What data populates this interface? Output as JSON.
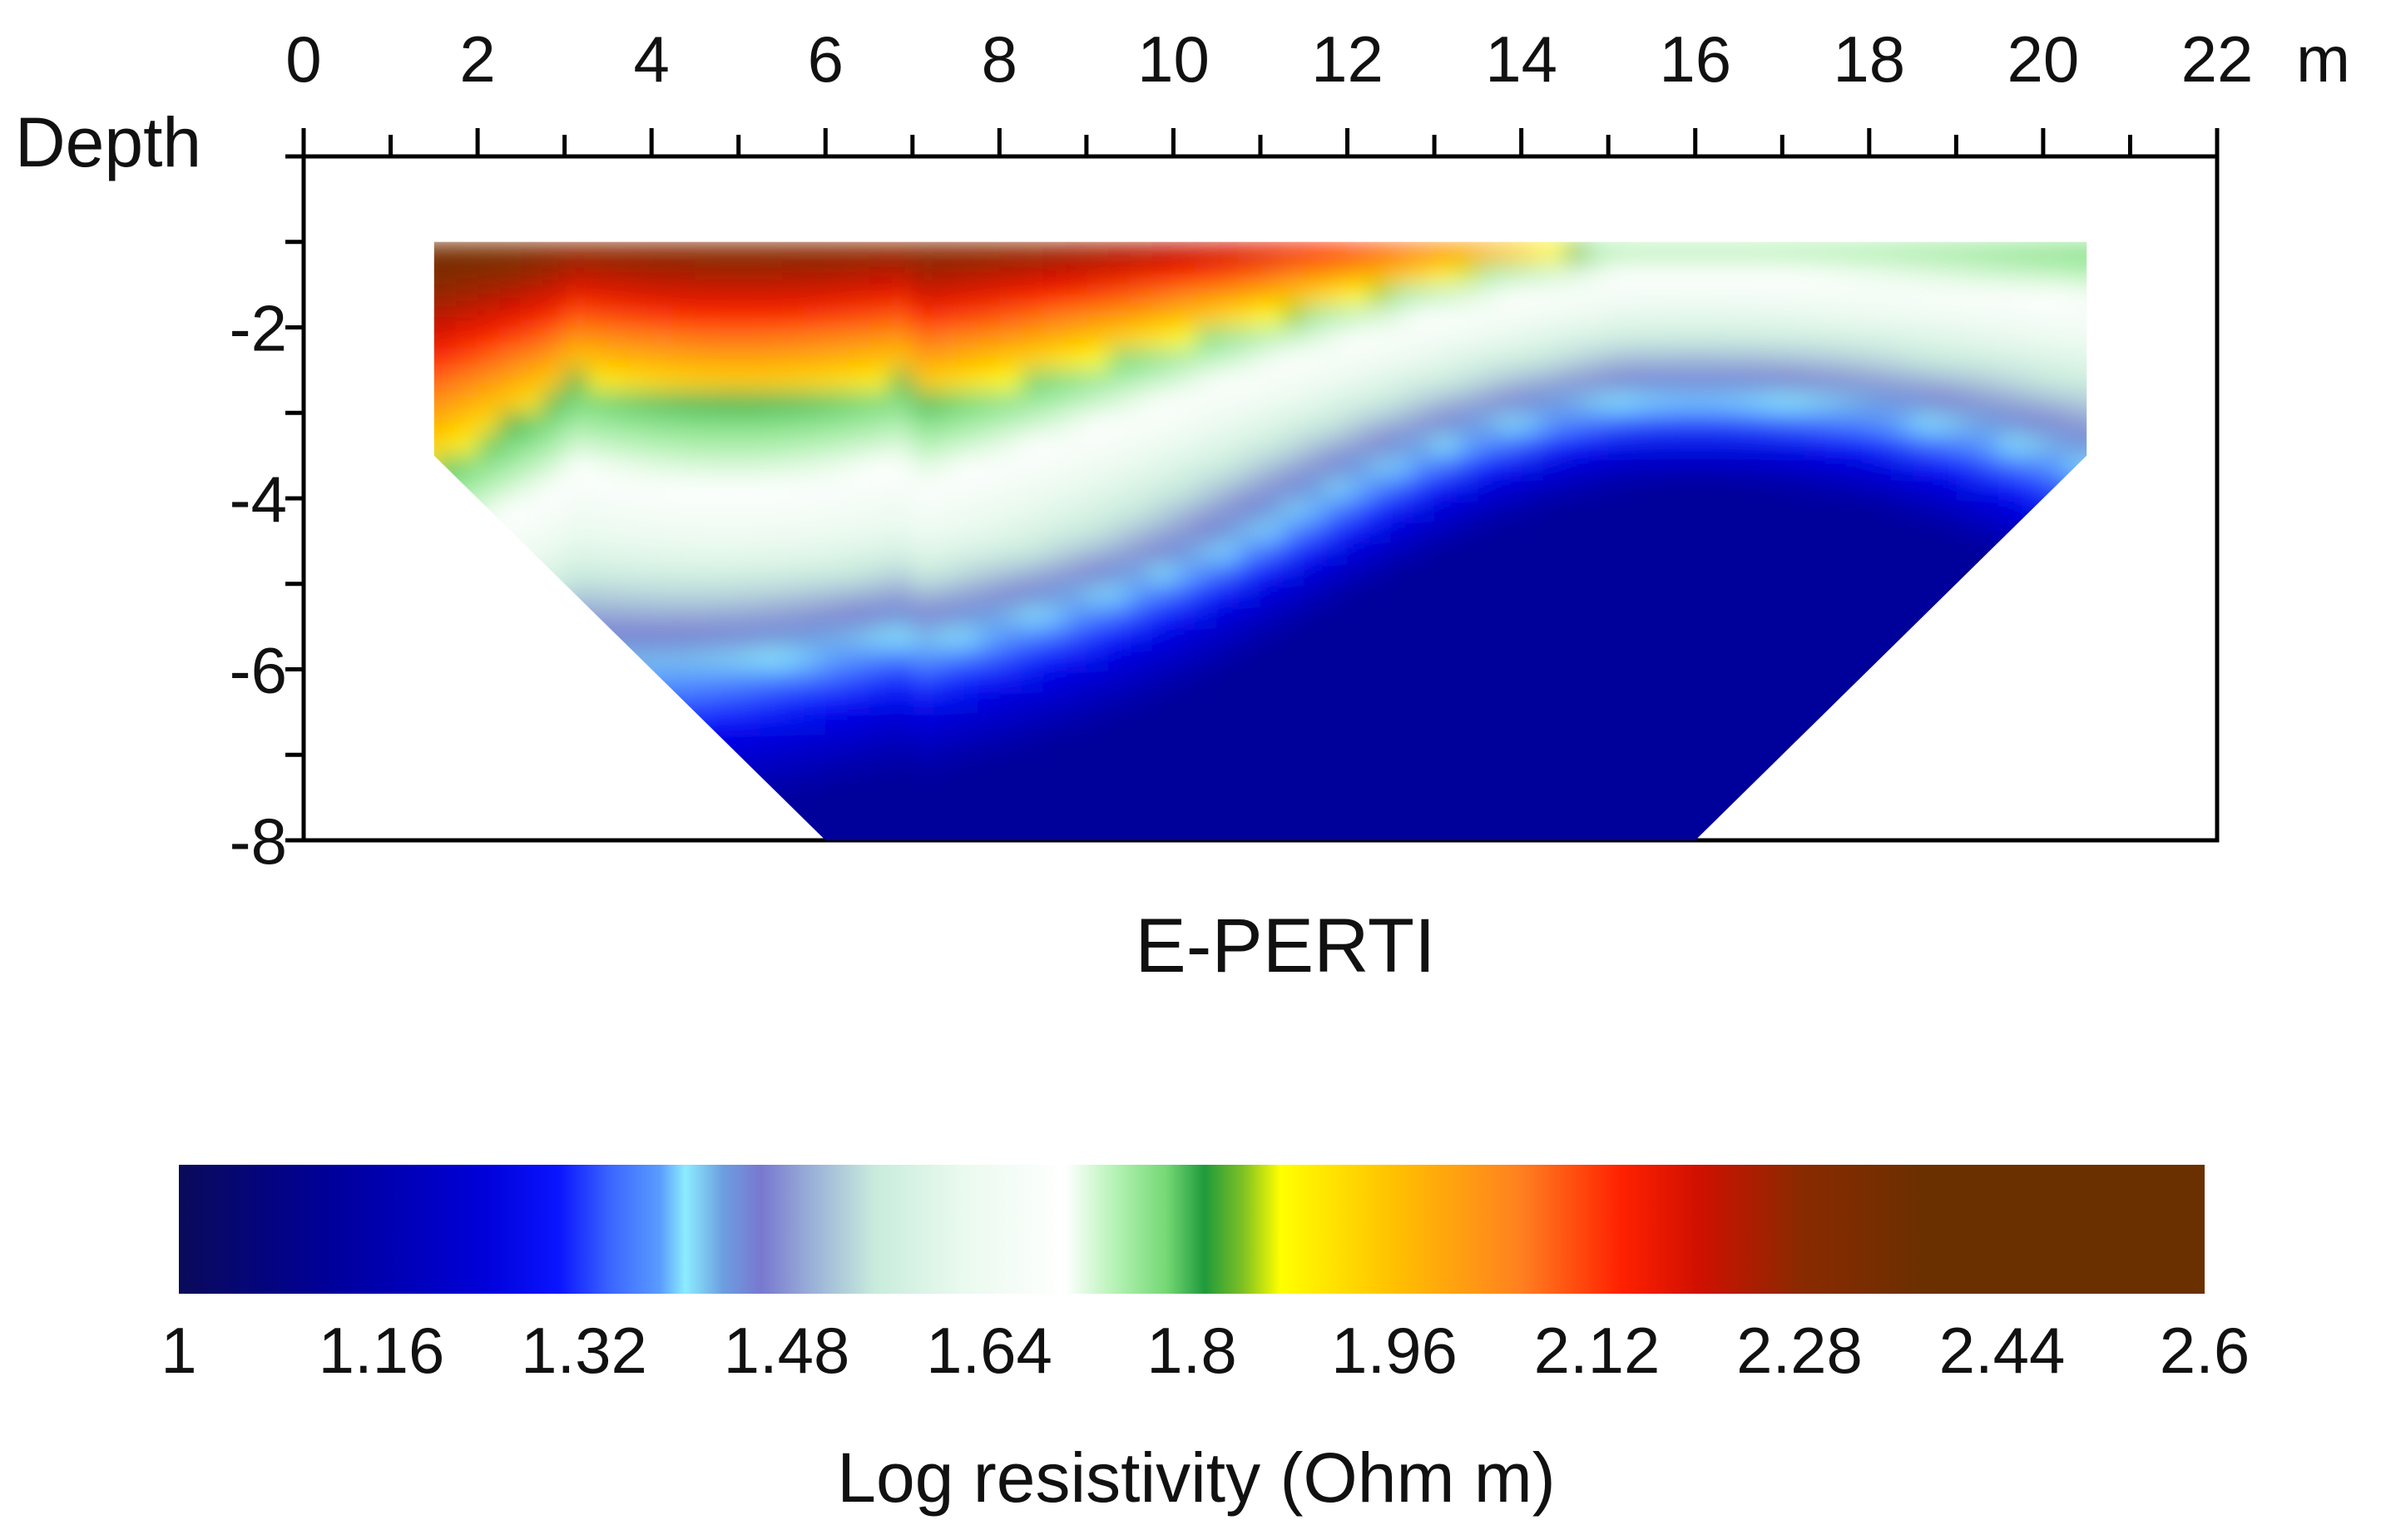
{
  "chart_data": {
    "type": "heatmap",
    "title": "E-PERTI",
    "xlabel": "",
    "x_unit": "m",
    "ylabel": "Depth",
    "xlim": [
      0,
      22
    ],
    "ylim": [
      -8,
      0
    ],
    "x_ticks": [
      0,
      2,
      4,
      6,
      8,
      10,
      12,
      14,
      16,
      18,
      20,
      22
    ],
    "x_tick_labels": [
      "0",
      "2",
      "4",
      "6",
      "8",
      "10",
      "12",
      "14",
      "16",
      "18",
      "20",
      "22"
    ],
    "y_ticks": [
      -2,
      -4,
      -6,
      -8
    ],
    "y_tick_labels": [
      "-2",
      "-4",
      "-6",
      "-8"
    ],
    "section_outline": [
      [
        1.5,
        -1.0
      ],
      [
        20.5,
        -1.0
      ],
      [
        20.5,
        -3.5
      ],
      [
        16.0,
        -8.0
      ],
      [
        6.0,
        -8.0
      ],
      [
        1.5,
        -3.5
      ]
    ],
    "features": [
      {
        "name": "high-resistivity surface layer",
        "x": [
          1.5,
          15.0
        ],
        "depth_top": -1.0,
        "depth_bottom": -2.6,
        "log_resistivity": 2.5
      },
      {
        "name": "low-resistivity body",
        "center": [
          16.0,
          -6.5
        ],
        "log_resistivity": 1.2
      }
    ],
    "colorbar": {
      "title": "Log resistivity (Ohm m)",
      "range": [
        1,
        2.6
      ],
      "tick_values": [
        1,
        1.16,
        1.32,
        1.48,
        1.64,
        1.8,
        1.96,
        2.12,
        2.28,
        2.44,
        2.6
      ],
      "tick_labels": [
        "1",
        "1.16",
        "1.32",
        "1.48",
        "1.64",
        "1.8",
        "1.96",
        "2.12",
        "2.28",
        "2.44",
        "2.6"
      ],
      "stops": [
        {
          "value": 1.0,
          "color": "#0a0a5a"
        },
        {
          "value": 1.12,
          "color": "#00009a"
        },
        {
          "value": 1.24,
          "color": "#0000d8"
        },
        {
          "value": 1.3,
          "color": "#0a14ff"
        },
        {
          "value": 1.34,
          "color": "#3a64ff"
        },
        {
          "value": 1.38,
          "color": "#5a9cff"
        },
        {
          "value": 1.4,
          "color": "#8cecff"
        },
        {
          "value": 1.43,
          "color": "#6c9ee0"
        },
        {
          "value": 1.46,
          "color": "#7878d0"
        },
        {
          "value": 1.5,
          "color": "#9ab0d8"
        },
        {
          "value": 1.55,
          "color": "#c8ecdc"
        },
        {
          "value": 1.62,
          "color": "#eafaee"
        },
        {
          "value": 1.7,
          "color": "#ffffff"
        },
        {
          "value": 1.74,
          "color": "#b4f2b4"
        },
        {
          "value": 1.78,
          "color": "#74d874"
        },
        {
          "value": 1.81,
          "color": "#1f9a3c"
        },
        {
          "value": 1.84,
          "color": "#7cc024"
        },
        {
          "value": 1.87,
          "color": "#ffff00"
        },
        {
          "value": 1.96,
          "color": "#ffc000"
        },
        {
          "value": 2.06,
          "color": "#ff8020"
        },
        {
          "value": 2.14,
          "color": "#ff2000"
        },
        {
          "value": 2.2,
          "color": "#d01000"
        },
        {
          "value": 2.28,
          "color": "#8a2a00"
        },
        {
          "value": 2.38,
          "color": "#6a3000"
        },
        {
          "value": 2.6,
          "color": "#6a3000"
        }
      ]
    }
  }
}
